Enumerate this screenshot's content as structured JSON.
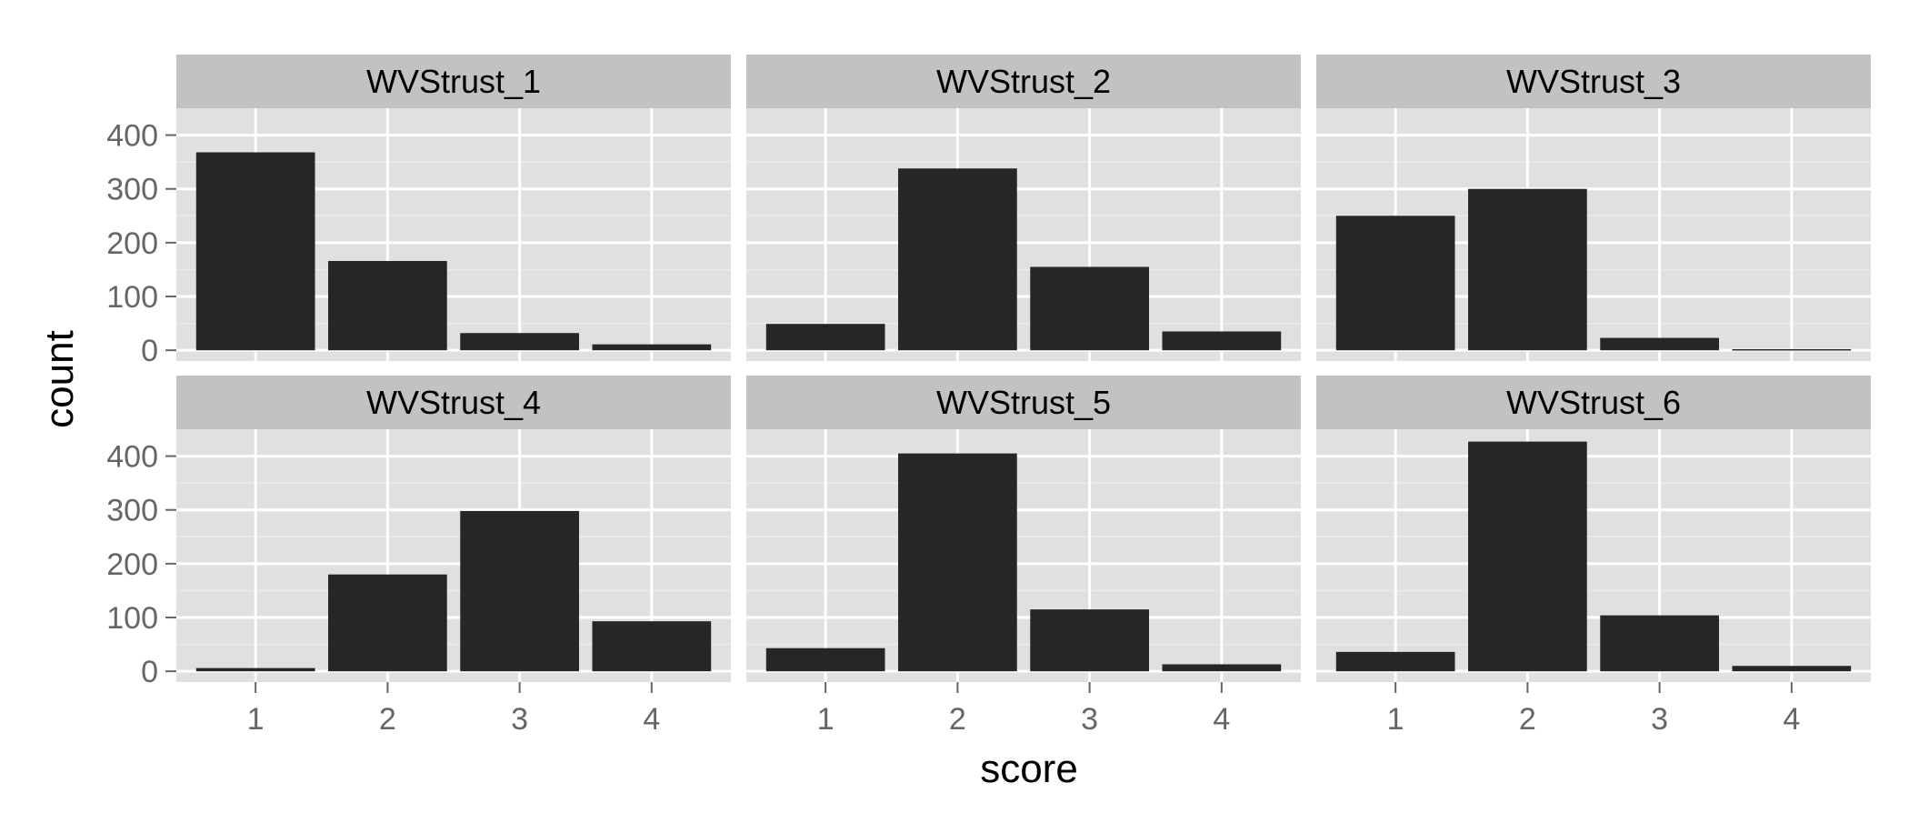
{
  "chart_data": {
    "type": "bar",
    "layout": "facet_wrap 2 rows x 3 columns",
    "xlabel": "score",
    "ylabel": "count",
    "categories": [
      "1",
      "2",
      "3",
      "4"
    ],
    "y_ticks": [
      "0",
      "100",
      "200",
      "300",
      "400"
    ],
    "ylim": [
      -20,
      450
    ],
    "grid": true,
    "colors": {
      "bar": "#262626",
      "panel_background": "#e0e0e0",
      "strip_background": "#c2c2c2",
      "grid_major": "#ffffff",
      "grid_minor": "#ebebeb",
      "axis_text": "#666666",
      "title_text": "#000000"
    },
    "facets": [
      {
        "name": "WVStrust_1",
        "values": [
          368,
          166,
          32,
          11
        ]
      },
      {
        "name": "WVStrust_2",
        "values": [
          49,
          338,
          155,
          35
        ]
      },
      {
        "name": "WVStrust_3",
        "values": [
          250,
          300,
          23,
          2
        ]
      },
      {
        "name": "WVStrust_4",
        "values": [
          6,
          180,
          298,
          93
        ]
      },
      {
        "name": "WVStrust_5",
        "values": [
          43,
          405,
          115,
          13
        ]
      },
      {
        "name": "WVStrust_6",
        "values": [
          36,
          427,
          104,
          10
        ]
      }
    ]
  }
}
